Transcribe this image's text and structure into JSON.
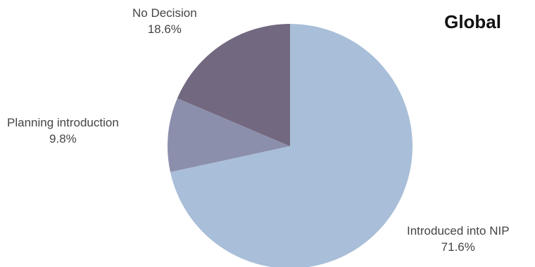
{
  "chart_data": {
    "type": "pie",
    "title": "Global",
    "start_angle_deg": 0,
    "direction": "clockwise",
    "slices": [
      {
        "label": "Introduced into NIP",
        "value": 71.6,
        "display": "71.6%",
        "color": "#a9bed8"
      },
      {
        "label": "Planning introduction",
        "value": 9.8,
        "display": "9.8%",
        "color": "#8c8fab"
      },
      {
        "label": "No Decision",
        "value": 18.6,
        "display": "18.6%",
        "color": "#72687f"
      }
    ],
    "legend": "none"
  }
}
